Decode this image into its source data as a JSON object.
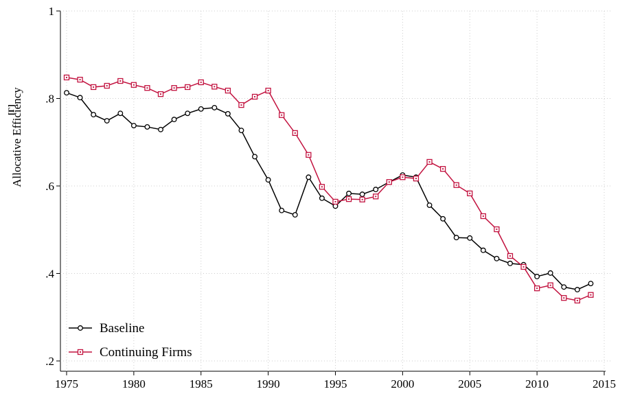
{
  "chart_data": {
    "type": "line",
    "y_label": "Allocative Efficiency",
    "y_label_symbol": "[Γ]",
    "x": [
      1975,
      1976,
      1977,
      1978,
      1979,
      1980,
      1981,
      1982,
      1983,
      1984,
      1985,
      1986,
      1987,
      1988,
      1989,
      1990,
      1991,
      1992,
      1993,
      1994,
      1995,
      1996,
      1997,
      1998,
      1999,
      2000,
      2001,
      2002,
      2003,
      2004,
      2005,
      2006,
      2007,
      2008,
      2009,
      2010,
      2011,
      2012,
      2013,
      2014
    ],
    "series": [
      {
        "name": "Baseline",
        "color": "#000000",
        "marker": "circle",
        "values": [
          0.813,
          0.802,
          0.763,
          0.749,
          0.766,
          0.738,
          0.735,
          0.729,
          0.752,
          0.766,
          0.776,
          0.779,
          0.765,
          0.727,
          0.667,
          0.614,
          0.544,
          0.534,
          0.62,
          0.572,
          0.554,
          0.583,
          0.581,
          0.592,
          0.609,
          0.625,
          0.62,
          0.556,
          0.525,
          0.482,
          0.481,
          0.453,
          0.434,
          0.423,
          0.42,
          0.393,
          0.401,
          0.369,
          0.363,
          0.377
        ]
      },
      {
        "name": "Continuing Firms",
        "color": "#c2123f",
        "marker": "square",
        "values": [
          0.848,
          0.843,
          0.826,
          0.829,
          0.84,
          0.831,
          0.824,
          0.81,
          0.824,
          0.826,
          0.837,
          0.827,
          0.818,
          0.785,
          0.804,
          0.818,
          0.762,
          0.721,
          0.671,
          0.598,
          0.564,
          0.57,
          0.569,
          0.576,
          0.609,
          0.62,
          0.617,
          0.655,
          0.639,
          0.602,
          0.583,
          0.531,
          0.501,
          0.44,
          0.415,
          0.366,
          0.373,
          0.344,
          0.338,
          0.351
        ]
      }
    ],
    "xlim": [
      1975,
      2015
    ],
    "xticks": [
      1975,
      1980,
      1985,
      1990,
      1995,
      2000,
      2005,
      2010,
      2015
    ],
    "ylim": [
      0.2,
      1
    ],
    "yticks": [
      {
        "value": 0.2,
        "label": ".2"
      },
      {
        "value": 0.4,
        "label": ".4"
      },
      {
        "value": 0.6,
        "label": ".6"
      },
      {
        "value": 0.8,
        "label": ".8"
      },
      1
    ],
    "grid": true,
    "legend": "lower left"
  }
}
